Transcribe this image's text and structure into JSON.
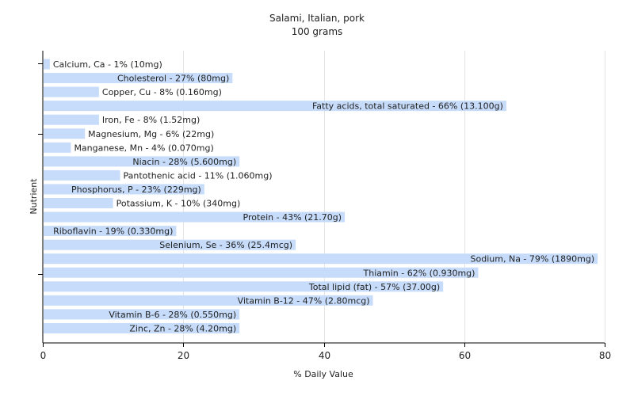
{
  "chart_data": {
    "type": "bar",
    "orientation": "horizontal",
    "title": "Salami, Italian, pork",
    "subtitle": "100 grams",
    "xlabel": "% Daily Value",
    "ylabel": "Nutrient",
    "xlim": [
      0,
      80
    ],
    "xticks": [
      0,
      20,
      40,
      60,
      80
    ],
    "grid": true,
    "bar_color": "#c6dcfa",
    "categories": [
      "Calcium, Ca",
      "Cholesterol",
      "Copper, Cu",
      "Fatty acids, total saturated",
      "Iron, Fe",
      "Magnesium, Mg",
      "Manganese, Mn",
      "Niacin",
      "Pantothenic acid",
      "Phosphorus, P",
      "Potassium, K",
      "Protein",
      "Riboflavin",
      "Selenium, Se",
      "Sodium, Na",
      "Thiamin",
      "Total lipid (fat)",
      "Vitamin B-12",
      "Vitamin B-6",
      "Zinc, Zn"
    ],
    "values": [
      1,
      27,
      8,
      66,
      8,
      6,
      4,
      28,
      11,
      23,
      10,
      43,
      19,
      36,
      79,
      62,
      57,
      47,
      28,
      28
    ],
    "labels": [
      "Calcium, Ca - 1% (10mg)",
      "Cholesterol - 27% (80mg)",
      "Copper, Cu - 8% (0.160mg)",
      "Fatty acids, total saturated - 66% (13.100g)",
      "Iron, Fe - 8% (1.52mg)",
      "Magnesium, Mg - 6% (22mg)",
      "Manganese, Mn - 4% (0.070mg)",
      "Niacin - 28% (5.600mg)",
      "Pantothenic acid - 11% (1.060mg)",
      "Phosphorus, P - 23% (229mg)",
      "Potassium, K - 10% (340mg)",
      "Protein - 43% (21.70g)",
      "Riboflavin - 19% (0.330mg)",
      "Selenium, Se - 36% (25.4mcg)",
      "Sodium, Na - 79% (1890mg)",
      "Thiamin - 62% (0.930mg)",
      "Total lipid (fat) - 57% (37.00g)",
      "Vitamin B-12 - 47% (2.80mcg)",
      "Vitamin B-6 - 28% (0.550mg)",
      "Zinc, Zn - 28% (4.20mg)"
    ]
  }
}
